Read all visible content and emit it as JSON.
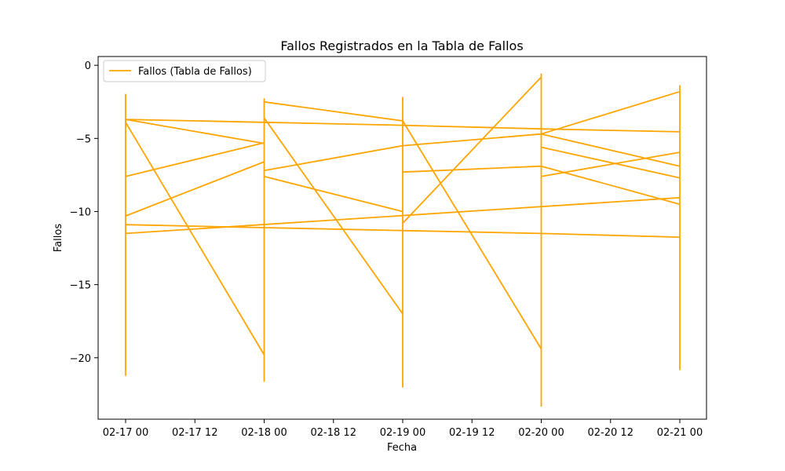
{
  "chart_data": {
    "type": "line",
    "title": "Fallos Registrados en la Tabla de Fallos",
    "xlabel": "Fecha",
    "ylabel": "Fallos",
    "x_ticks": [
      "02-17 00",
      "02-17 12",
      "02-18 00",
      "02-18 12",
      "02-19 00",
      "02-19 12",
      "02-20 00",
      "02-20 12",
      "02-21 00"
    ],
    "y_ticks": [
      0,
      -5,
      -10,
      -15,
      -20
    ],
    "ylim": [
      -24.2,
      0.6
    ],
    "grid": false,
    "legend_position": "top-left",
    "series": [
      {
        "name": "Fallos (Tabla de Fallos)",
        "color": "#FFA500",
        "points": [
          [
            "02-17 00",
            -3.7
          ],
          [
            "02-18 00",
            -3.9
          ],
          [
            "02-19 00",
            -4.1
          ],
          [
            "02-20 00",
            -4.35
          ],
          [
            "02-21 00",
            -4.55
          ],
          [
            "02-21 00",
            -1.4
          ],
          [
            "02-21 00",
            -20.8
          ],
          [
            "02-21 00",
            -1.8
          ],
          [
            "02-20 00",
            -4.7
          ],
          [
            "02-19 00",
            -5.5
          ],
          [
            "02-18 00",
            -7.2
          ],
          [
            "02-18 00",
            -5.3
          ],
          [
            "02-17 00",
            -7.6
          ],
          [
            "02-17 00",
            -2.0
          ],
          [
            "02-17 00",
            -21.2
          ],
          [
            "02-17 00",
            -10.3
          ],
          [
            "02-18 00",
            -6.6
          ],
          [
            "02-18 00",
            -2.3
          ],
          [
            "02-18 00",
            -21.6
          ],
          [
            "02-18 00",
            -7.6
          ],
          [
            "02-19 00",
            -10.0
          ],
          [
            "02-19 00",
            -2.2
          ],
          [
            "02-19 00",
            -22.0
          ],
          [
            "02-19 00",
            -17.0
          ],
          [
            "02-18 00",
            -3.6
          ],
          [
            "02-18 00",
            -2.4
          ],
          [
            "02-18 00",
            -14.0
          ],
          [
            "02-18 00",
            -5.35
          ],
          [
            "02-17 00",
            -3.7
          ],
          [
            "02-17 00",
            -13.3
          ],
          [
            "02-17 00",
            -11.5
          ],
          [
            "02-21 00",
            -9.05
          ],
          [
            "02-21 00",
            -11.75
          ],
          [
            "02-20 00",
            -11.5
          ],
          [
            "02-19 00",
            -11.3
          ],
          [
            "02-18 00",
            -11.1
          ],
          [
            "02-17 00",
            -10.9
          ],
          [
            "02-17 00",
            -3.9
          ],
          [
            "02-18 00",
            -19.8
          ],
          [
            "02-18 00",
            -2.5
          ],
          [
            "02-19 00",
            -3.8
          ],
          [
            "02-20 00",
            -19.4
          ],
          [
            "02-20 00",
            -23.3
          ],
          [
            "02-20 00",
            -0.6
          ],
          [
            "02-20 00",
            -0.8
          ],
          [
            "02-19 00",
            -10.8
          ],
          [
            "02-19 00",
            -12.8
          ],
          [
            "02-19 00",
            -7.9
          ],
          [
            "02-19 00",
            -7.3
          ],
          [
            "02-20 00",
            -6.9
          ],
          [
            "02-21 00",
            -9.5
          ],
          [
            "02-21 00",
            -7.7
          ],
          [
            "02-20 00",
            -5.6
          ],
          [
            "02-20 00",
            -7.6
          ],
          [
            "02-21 00",
            -5.95
          ],
          [
            "02-21 00",
            -6.9
          ],
          [
            "02-20 00",
            -4.7
          ]
        ]
      }
    ]
  }
}
